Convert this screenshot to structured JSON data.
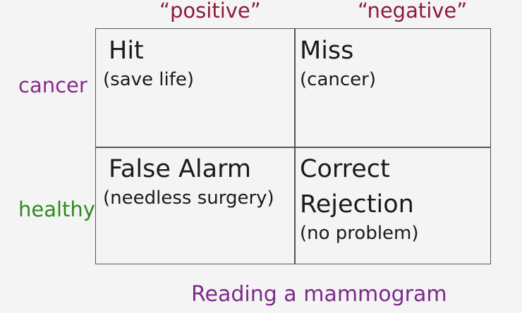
{
  "columns": {
    "positive": "“positive”",
    "negative": "“negative”"
  },
  "rows": {
    "cancer": "cancer",
    "healthy": "healthy"
  },
  "cells": {
    "hit": {
      "title": "Hit",
      "sub": "(save life)"
    },
    "miss": {
      "title": "Miss",
      "sub": "(cancer)"
    },
    "false_alarm": {
      "title": "False Alarm",
      "sub": "(needless surgery)"
    },
    "correct_rejection": {
      "title_line1": "Correct",
      "title_line2": "Rejection",
      "sub": "(no problem)"
    }
  },
  "caption": "Reading a mammogram",
  "colors": {
    "column_header": "#8e1b3a",
    "cancer": "#8a2a8c",
    "healthy": "#2e8a1e",
    "caption": "#7b2a8a"
  }
}
